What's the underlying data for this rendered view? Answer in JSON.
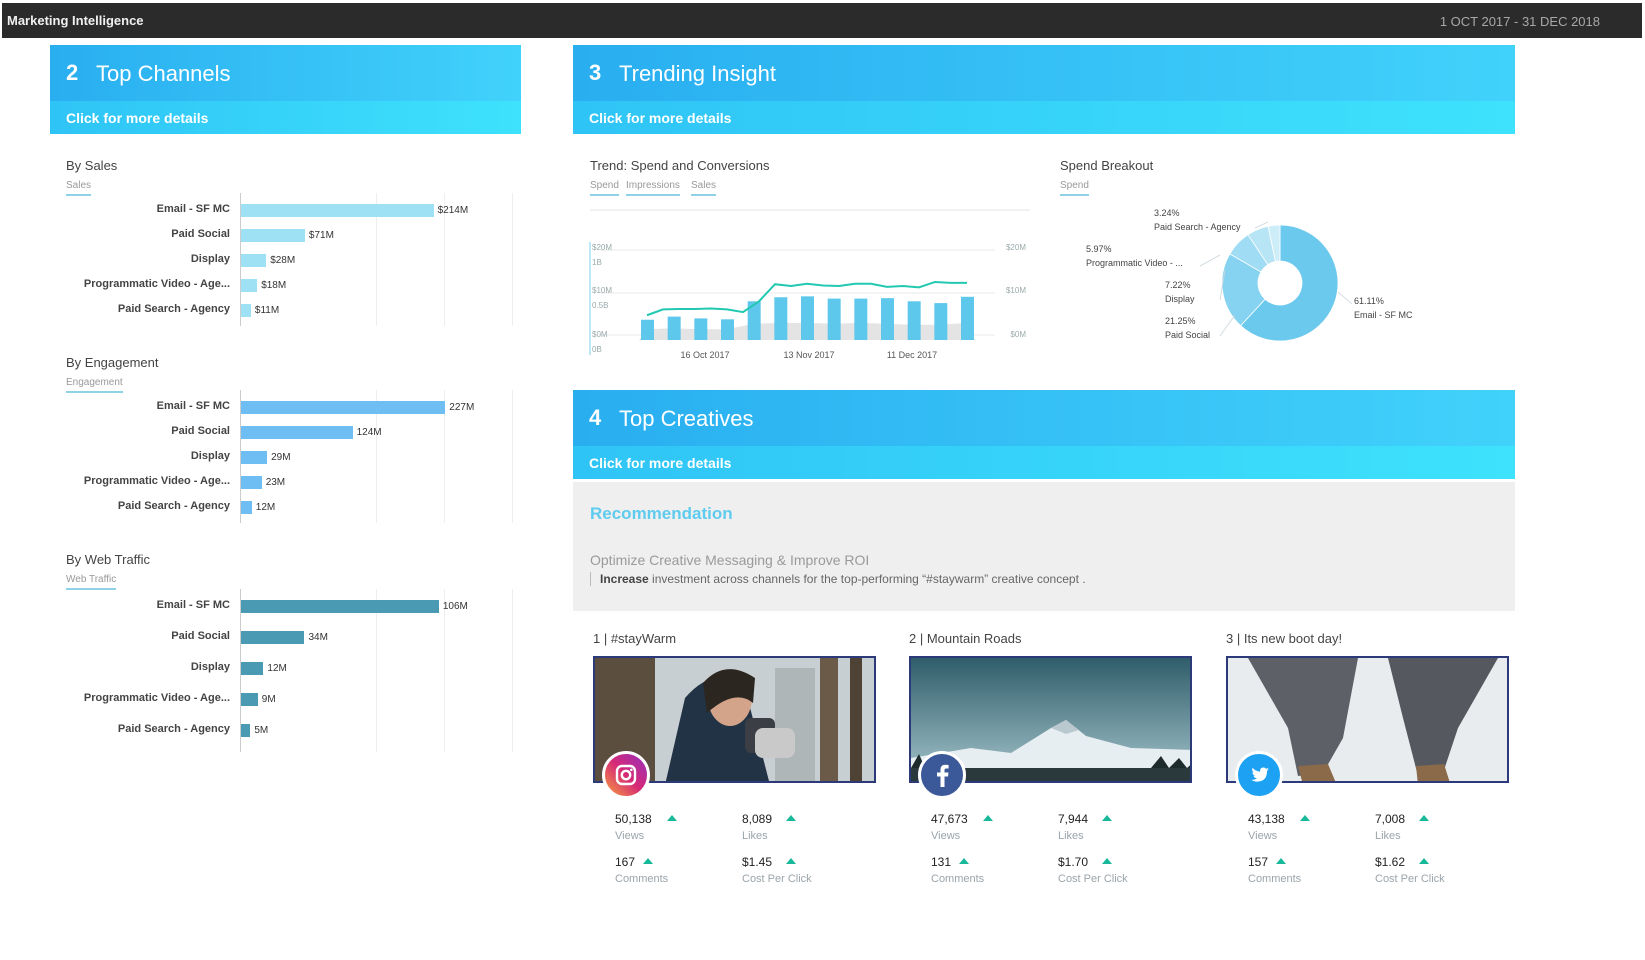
{
  "app": {
    "title": "Marketing Intelligence",
    "date_range": "1 OCT 2017 - 31 DEC 2018"
  },
  "colors": {
    "hero_start": "#29aef0",
    "hero_end": "#41d2fb",
    "sales_bar": "#9ee0f4",
    "engagement_bar": "#6fbef3",
    "traffic_bar": "#4a9ab3",
    "trend_line": "#22c9b0",
    "up_arrow": "#18b99a",
    "recommendation_title": "#5fcbef"
  },
  "top_channels": {
    "number": "2",
    "title": "Top Channels",
    "more": "Click for more details",
    "by_sales": {
      "title": "By Sales",
      "sub": "Sales"
    },
    "by_engagement": {
      "title": "By Engagement",
      "sub": "Engagement"
    },
    "by_web_traffic": {
      "title": "By Web Traffic",
      "sub": "Web Traffic"
    }
  },
  "trending": {
    "number": "3",
    "title": "Trending Insight",
    "more": "Click for more details",
    "trend_title": "Trend: Spend and Conversions",
    "trend_legend": [
      "Spend",
      "Impressions",
      "Sales"
    ],
    "breakdown_title": "Spend Breakout",
    "breakdown_legend": "Spend",
    "left_ticks": [
      {
        "spend": "$20M",
        "other": "1B"
      },
      {
        "spend": "$10M",
        "other": "0.5B"
      },
      {
        "spend": "$0M",
        "other": "0B"
      }
    ],
    "right_ticks": [
      "$20M",
      "$10M",
      "$0M"
    ],
    "x_ticks": [
      "16 Oct 2017",
      "13 Nov 2017",
      "11 Dec 2017"
    ],
    "pie_labels": [
      {
        "pct": "3.24%",
        "name": "Paid Search - Agency"
      },
      {
        "pct": "5.97%",
        "name": "Programmatic Video - ..."
      },
      {
        "pct": "7.22%",
        "name": "Display"
      },
      {
        "pct": "21.25%",
        "name": "Paid Social"
      },
      {
        "pct": "61.11%",
        "name": "Email - SF MC"
      }
    ]
  },
  "top_creatives": {
    "number": "4",
    "title": "Top Creatives",
    "more": "Click for more details",
    "recommendation": {
      "title": "Recommendation",
      "headline": "Optimize Creative Messaging & Improve ROI",
      "bold": "Increase",
      "text": "investment across channels for the top-performing “#staywarm” creative concept ."
    },
    "cards": [
      {
        "title": "1 | #stayWarm",
        "network": "instagram",
        "views": "50,138",
        "likes": "8,089",
        "comments": "167",
        "cpc": "$1.45"
      },
      {
        "title": "2 | Mountain Roads",
        "network": "facebook",
        "views": "47,673",
        "likes": "7,944",
        "comments": "131",
        "cpc": "$1.70"
      },
      {
        "title": "3 | Its new boot day!",
        "network": "twitter",
        "views": "43,138",
        "likes": "7,008",
        "comments": "157",
        "cpc": "$1.62"
      }
    ],
    "metric_labels": {
      "views": "Views",
      "likes": "Likes",
      "comments": "Comments",
      "cpc": "Cost Per Click"
    }
  },
  "chart_data": [
    {
      "type": "bar",
      "orientation": "horizontal",
      "title": "By Sales",
      "series_label": "Sales",
      "categories": [
        "Email - SF MC",
        "Paid Social",
        "Display",
        "Programmatic Video - Age...",
        "Paid Search - Agency"
      ],
      "values": [
        214,
        71,
        28,
        18,
        11
      ],
      "labels": [
        "$214M",
        "$71M",
        "$28M",
        "$18M",
        "$11M"
      ],
      "unit": "$M",
      "xlim": [
        0,
        300
      ]
    },
    {
      "type": "bar",
      "orientation": "horizontal",
      "title": "By Engagement",
      "series_label": "Engagement",
      "categories": [
        "Email - SF MC",
        "Paid Social",
        "Display",
        "Programmatic Video - Age...",
        "Paid Search - Agency"
      ],
      "values": [
        227,
        124,
        29,
        23,
        12
      ],
      "labels": [
        "227M",
        "124M",
        "29M",
        "23M",
        "12M"
      ],
      "unit": "M",
      "xlim": [
        0,
        300
      ]
    },
    {
      "type": "bar",
      "orientation": "horizontal",
      "title": "By Web Traffic",
      "series_label": "Web Traffic",
      "categories": [
        "Email - SF MC",
        "Paid Social",
        "Display",
        "Programmatic Video - Age...",
        "Paid Search - Agency"
      ],
      "values": [
        106,
        34,
        12,
        9,
        5
      ],
      "labels": [
        "106M",
        "34M",
        "12M",
        "9M",
        "5M"
      ],
      "unit": "M",
      "xlim": [
        0,
        150
      ]
    },
    {
      "type": "bar+line",
      "title": "Trend: Spend and Conversions",
      "x_ticks": [
        "16 Oct 2017",
        "13 Nov 2017",
        "11 Dec 2017"
      ],
      "series": [
        {
          "name": "Spend",
          "kind": "bar",
          "values": [
            4.5,
            5.2,
            4.8,
            4.6,
            8.6,
            9.5,
            9.7,
            9.2,
            9.2,
            9.3,
            8.6,
            8.2,
            9.6
          ],
          "ylim": [
            0,
            20
          ]
        },
        {
          "name": "Impressions",
          "kind": "area",
          "values": [
            0.12,
            0.13,
            0.12,
            0.12,
            0.18,
            0.19,
            0.19,
            0.18,
            0.19,
            0.18,
            0.17,
            0.17,
            0.19
          ],
          "ylim": [
            0,
            1
          ]
        },
        {
          "name": "Sales",
          "kind": "line",
          "values": [
            5.5,
            6.8,
            6.9,
            6.9,
            7.0,
            6.8,
            6.2,
            8.6,
            12.4,
            12.0,
            12.5,
            12.1,
            12.0,
            12.5,
            12.5,
            11.8,
            12.0,
            11.7,
            12.9,
            12.7,
            12.7
          ],
          "ylim": [
            0,
            20
          ]
        }
      ]
    },
    {
      "type": "pie",
      "title": "Spend Breakout",
      "donut": true,
      "categories": [
        "Email - SF MC",
        "Paid Social",
        "Display",
        "Programmatic Video - ...",
        "Paid Search - Agency"
      ],
      "values": [
        61.11,
        21.25,
        7.22,
        5.97,
        3.24
      ]
    }
  ]
}
